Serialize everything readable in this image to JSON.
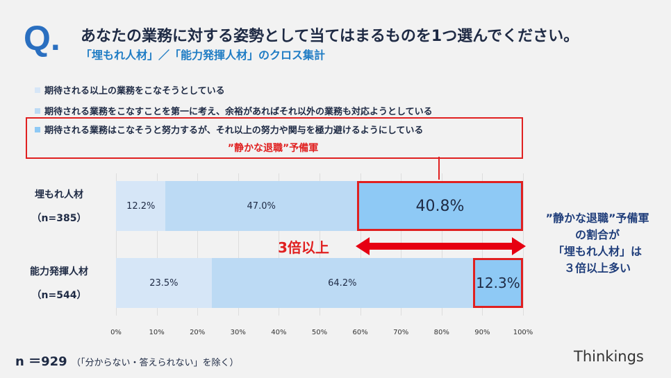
{
  "header": {
    "q": "Q.",
    "title": "あなたの業務に対する姿勢として当てはまるものを1つ選んでください。",
    "subtitle": "「埋もれ人材」／「能力発揮人材」のクロス集計"
  },
  "legend_callout": "”静かな退職”予備軍",
  "arrow_label": "3倍以上",
  "note": [
    "”静かな退職”予備軍",
    "の割合が",
    "「埋もれ人材」は",
    "３倍以上多い"
  ],
  "footer": {
    "n": "n ＝929",
    "n_note": "（「分からない・答えられない」を除く）",
    "logo": "Thinkings"
  },
  "chart_data": {
    "type": "bar",
    "orientation": "horizontal",
    "stacked": true,
    "xlim": [
      0,
      100
    ],
    "legend": "top",
    "categories": [
      {
        "label": "埋もれ人材",
        "n": "（n=385）"
      },
      {
        "label": "能力発揮人材",
        "n": "（n=544）"
      }
    ],
    "series": [
      {
        "name": "期待される以上の業務をこなそうとしている",
        "values": [
          12.2,
          23.5
        ],
        "labels": [
          "12.2%",
          "23.5%"
        ],
        "color": "#d6e6f7"
      },
      {
        "name": "期待される業務をこなすことを第一に考え、余裕があればそれ以外の業務も対応ようとしている",
        "values": [
          47.0,
          64.2
        ],
        "labels": [
          "47.0%",
          "64.2%"
        ],
        "color": "#bcdaf4"
      },
      {
        "name": "期待される業務はこなそうと努力するが、それ以上の努力や関与を極力避けるようにしている",
        "values": [
          40.8,
          12.3
        ],
        "labels": [
          "40.8%",
          "12.3%"
        ],
        "color": "#8ec9f5"
      }
    ],
    "ticks": [
      "0%",
      "10%",
      "20%",
      "30%",
      "40%",
      "50%",
      "60%",
      "70%",
      "80%",
      "90%",
      "100%"
    ],
    "grid": true
  }
}
